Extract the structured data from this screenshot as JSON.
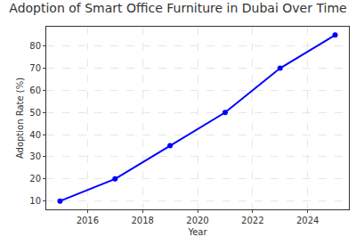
{
  "chart_data": {
    "type": "line",
    "title": "Adoption of Smart Office Furniture in Dubai Over Time",
    "x_label": "Year",
    "y_label": "Adoption Rate (%)",
    "x": [
      2015,
      2017,
      2019,
      2021,
      2023,
      2025
    ],
    "values": [
      10,
      20,
      35,
      50,
      70,
      85
    ],
    "color": "#0000ff",
    "marker": "circle",
    "line_style": "solid",
    "xlim": [
      2014.5,
      2025.5
    ],
    "xticks": [
      2016,
      2018,
      2020,
      2022,
      2024
    ],
    "ylim": [
      6.25,
      88.75
    ],
    "yticks": [
      10,
      20,
      30,
      40,
      50,
      60,
      70,
      80
    ],
    "grid": true
  }
}
